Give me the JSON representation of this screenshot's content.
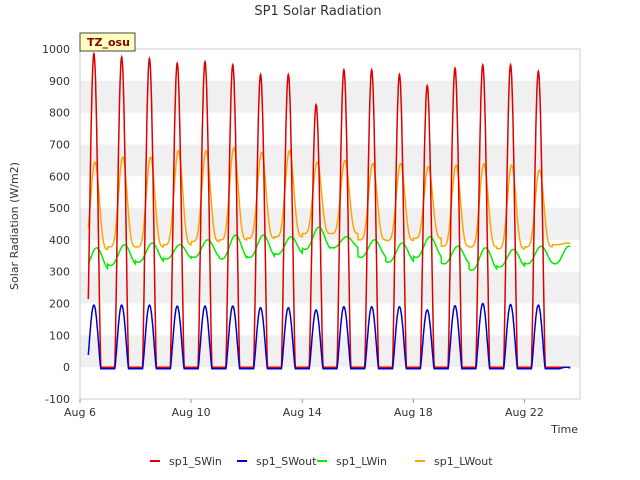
{
  "chart_data": {
    "type": "line",
    "title": "SP1 Solar Radiation",
    "xlabel": "Time",
    "ylabel": "Solar Radiation (W/m2)",
    "ylim": [
      -100,
      1000
    ],
    "yticks": [
      -100,
      0,
      100,
      200,
      300,
      400,
      500,
      600,
      700,
      800,
      900,
      1000
    ],
    "xlim": [
      "2024-08-06",
      "2024-08-24"
    ],
    "xticks": [
      {
        "label": "Aug 6",
        "date": "2024-08-06"
      },
      {
        "label": "Aug 10",
        "date": "2024-08-10"
      },
      {
        "label": "Aug 14",
        "date": "2024-08-14"
      },
      {
        "label": "Aug 18",
        "date": "2024-08-18"
      },
      {
        "label": "Aug 22",
        "date": "2024-08-22"
      }
    ],
    "grid": "horizontal bands",
    "legend_position": "bottom",
    "badge": "TZ_osu",
    "days": [
      "2024-08-06",
      "2024-08-07",
      "2024-08-08",
      "2024-08-09",
      "2024-08-10",
      "2024-08-11",
      "2024-08-12",
      "2024-08-13",
      "2024-08-14",
      "2024-08-15",
      "2024-08-16",
      "2024-08-17",
      "2024-08-18",
      "2024-08-19",
      "2024-08-20",
      "2024-08-21",
      "2024-08-22",
      "2024-08-23"
    ],
    "series": [
      {
        "name": "sp1_SWin",
        "color": "#dd0000",
        "night": 0,
        "daily_peak": [
          985,
          975,
          970,
          955,
          960,
          950,
          920,
          920,
          825,
          935,
          935,
          920,
          885,
          940,
          950,
          950,
          930,
          0
        ]
      },
      {
        "name": "sp1_SWout",
        "color": "#0000cc",
        "night": -5,
        "daily_peak": [
          195,
          195,
          195,
          192,
          192,
          192,
          187,
          187,
          180,
          190,
          190,
          190,
          180,
          193,
          200,
          197,
          195,
          0
        ]
      },
      {
        "name": "sp1_LWin",
        "color": "#00ee00",
        "daily_min": [
          305,
          320,
          330,
          340,
          345,
          340,
          345,
          355,
          370,
          375,
          345,
          330,
          345,
          325,
          305,
          315,
          325,
          325
        ],
        "daily_max": [
          375,
          385,
          390,
          385,
          400,
          415,
          415,
          410,
          440,
          410,
          400,
          390,
          410,
          380,
          375,
          370,
          380,
          380
        ]
      },
      {
        "name": "sp1_LWout",
        "color": "#ffa500",
        "daily_min": [
          370,
          378,
          378,
          385,
          395,
          400,
          405,
          410,
          420,
          420,
          400,
          398,
          405,
          380,
          378,
          372,
          378,
          385
        ],
        "daily_max": [
          645,
          660,
          660,
          680,
          680,
          690,
          675,
          680,
          645,
          650,
          640,
          640,
          630,
          635,
          640,
          635,
          620,
          390
        ]
      }
    ]
  }
}
